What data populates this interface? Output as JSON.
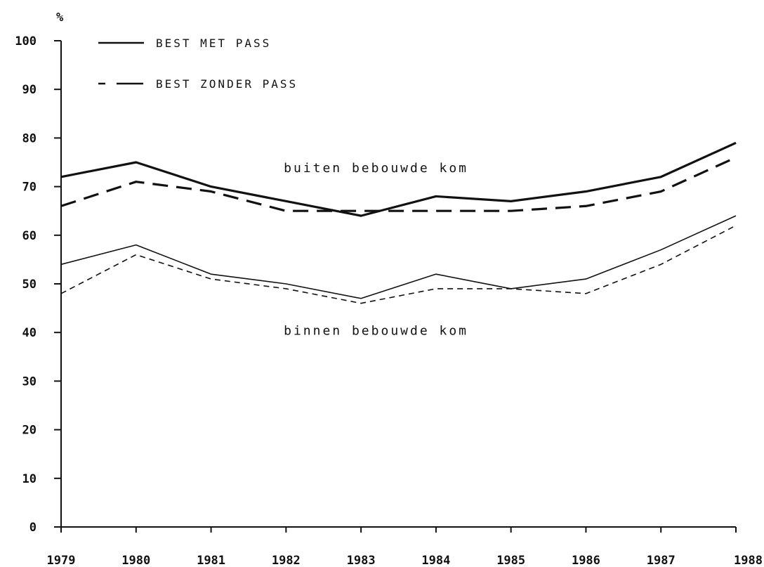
{
  "chart_data": {
    "type": "line",
    "unit_label": "%",
    "ylim": [
      0,
      100
    ],
    "yticks": [
      0,
      10,
      20,
      30,
      40,
      50,
      60,
      70,
      80,
      90,
      100
    ],
    "ytick_labels": [
      "0",
      "10",
      "20",
      "30",
      "40",
      "50",
      "60",
      "70",
      "80",
      "90",
      "100"
    ],
    "x": [
      "1979",
      "1980",
      "1981",
      "1982",
      "1983",
      "1984",
      "1985",
      "1986",
      "1987",
      "1988"
    ],
    "grid": false,
    "legend": {
      "placement": "top-left",
      "entries": [
        {
          "label": "BEST MET PASS",
          "style": "solid"
        },
        {
          "label": "BEST ZONDER PASS",
          "style": "dashed"
        }
      ]
    },
    "annotations": [
      {
        "text": "buiten bebouwde kom",
        "x": "1983",
        "y": 73
      },
      {
        "text": "binnen bebouwde kom",
        "x": "1983",
        "y": 39.5
      }
    ],
    "series": [
      {
        "name": "BEST MET PASS",
        "group": "buiten bebouwde kom",
        "style": "solid",
        "weight": "thick",
        "values": [
          72,
          75,
          70,
          67,
          64,
          68,
          67,
          69,
          72,
          79
        ]
      },
      {
        "name": "BEST ZONDER PASS",
        "group": "buiten bebouwde kom",
        "style": "dashed",
        "weight": "thick",
        "values": [
          66,
          71,
          69,
          65,
          65,
          65,
          65,
          66,
          69,
          76
        ]
      },
      {
        "name": "BEST MET PASS",
        "group": "binnen bebouwde kom",
        "style": "solid",
        "weight": "thin",
        "values": [
          54,
          58,
          52,
          50,
          47,
          52,
          49,
          51,
          57,
          64
        ]
      },
      {
        "name": "BEST ZONDER PASS",
        "group": "binnen bebouwde kom",
        "style": "dashed",
        "weight": "thin",
        "values": [
          48,
          56,
          51,
          49,
          46,
          49,
          49,
          48,
          54,
          62
        ]
      }
    ]
  }
}
